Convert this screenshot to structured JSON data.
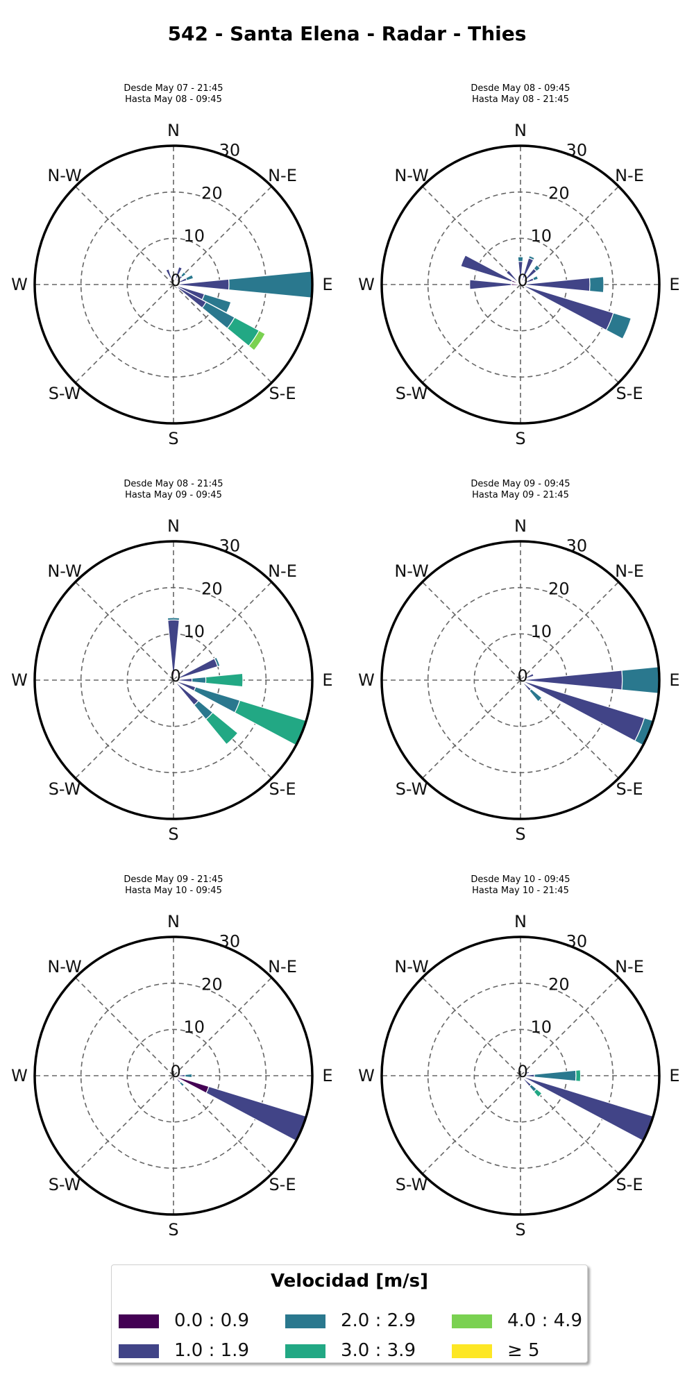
{
  "title": "542 - Santa Elena - Radar - Thies",
  "chart_data": {
    "type": "windrose",
    "rmax": 30,
    "rticks": [
      "0",
      "10",
      "20",
      "30"
    ],
    "direction_labels": [
      "N",
      "N-E",
      "E",
      "S-E",
      "S",
      "S-W",
      "W",
      "N-W"
    ],
    "speed_bins": [
      {
        "label": "0.0 : 0.9",
        "color": "#440154"
      },
      {
        "label": "1.0 : 1.9",
        "color": "#414487"
      },
      {
        "label": "2.0 : 2.9",
        "color": "#2a788e"
      },
      {
        "label": "3.0 : 3.9",
        "color": "#22a884"
      },
      {
        "label": "4.0 : 4.9",
        "color": "#7ad151"
      },
      {
        "label": "≥ 5",
        "color": "#fde725"
      }
    ],
    "panels": [
      {
        "subtitle_line1": "Desde May 07 - 21:45",
        "subtitle_line2": "Hasta May 08 - 09:45",
        "sectors": [
          {
            "dir": 22.5,
            "stack": [
              1.5,
              2.5
            ]
          },
          {
            "dir": 45,
            "stack": [
              0.5,
              2,
              1
            ]
          },
          {
            "dir": 67.5,
            "stack": [
              0,
              3,
              1.5
            ]
          },
          {
            "dir": 90,
            "stack": [
              0,
              12,
              18
            ]
          },
          {
            "dir": 112.5,
            "stack": [
              0,
              7,
              6
            ]
          },
          {
            "dir": 123.75,
            "stack": [
              0,
              8,
              7,
              6,
              1.5
            ]
          },
          {
            "dir": 337.5,
            "stack": [
              1.5,
              2
            ]
          }
        ]
      },
      {
        "subtitle_line1": "Desde May 08 - 09:45",
        "subtitle_line2": "Hasta May 08 - 21:45",
        "sectors": [
          {
            "dir": 0,
            "stack": [
              1,
              4,
              1
            ]
          },
          {
            "dir": 22.5,
            "stack": [
              1.5,
              4.5,
              0.5
            ]
          },
          {
            "dir": 45,
            "stack": [
              1,
              3.5,
              1
            ]
          },
          {
            "dir": 67.5,
            "stack": [
              0,
              3,
              1
            ]
          },
          {
            "dir": 90,
            "stack": [
              1,
              14,
              3
            ]
          },
          {
            "dir": 112.5,
            "stack": [
              1,
              20,
              4
            ]
          },
          {
            "dir": 270,
            "stack": [
              2,
              9
            ]
          },
          {
            "dir": 292.5,
            "stack": [
              2,
              11.5
            ]
          },
          {
            "dir": 315,
            "stack": [
              1,
              3
            ]
          }
        ]
      },
      {
        "subtitle_line1": "Desde May 08 - 21:45",
        "subtitle_line2": "Hasta May 09 - 09:45",
        "sectors": [
          {
            "dir": 0,
            "stack": [
              2,
              11,
              0.5
            ]
          },
          {
            "dir": 67.5,
            "stack": [
              1,
              9,
              0.5
            ]
          },
          {
            "dir": 90,
            "stack": [
              0,
              4,
              3,
              8
            ]
          },
          {
            "dir": 112.5,
            "stack": [
              0,
              5,
              10,
              15
            ]
          },
          {
            "dir": 135,
            "stack": [
              0,
              7,
              4,
              7
            ]
          }
        ]
      },
      {
        "subtitle_line1": "Desde May 09 - 09:45",
        "subtitle_line2": "Hasta May 09 - 21:45",
        "sectors": [
          {
            "dir": 67.5,
            "stack": [
              1,
              2
            ]
          },
          {
            "dir": 90,
            "stack": [
              0,
              22,
              9
            ]
          },
          {
            "dir": 112.5,
            "stack": [
              0,
              28,
              5
            ]
          },
          {
            "dir": 135,
            "stack": [
              0,
              3,
              3
            ]
          }
        ]
      },
      {
        "subtitle_line1": "Desde May 09 - 21:45",
        "subtitle_line2": "Hasta May 10 - 09:45",
        "sectors": [
          {
            "dir": 90,
            "stack": [
              0,
              2.5,
              1.5
            ]
          },
          {
            "dir": 112.5,
            "stack": [
              8,
              22
            ]
          },
          {
            "dir": 135,
            "stack": [
              0,
              2,
              1
            ]
          }
        ]
      },
      {
        "subtitle_line1": "Desde May 10 - 09:45",
        "subtitle_line2": "Hasta May 10 - 21:45",
        "sectors": [
          {
            "dir": 67.5,
            "stack": [
              1,
              1
            ]
          },
          {
            "dir": 90,
            "stack": [
              0,
              3,
              9,
              1
            ]
          },
          {
            "dir": 112.5,
            "stack": [
              0,
              33
            ]
          },
          {
            "dir": 135,
            "stack": [
              0,
              3,
              1.5,
              1.5
            ]
          }
        ]
      }
    ]
  },
  "legend": {
    "title": "Velocidad [m/s]"
  }
}
